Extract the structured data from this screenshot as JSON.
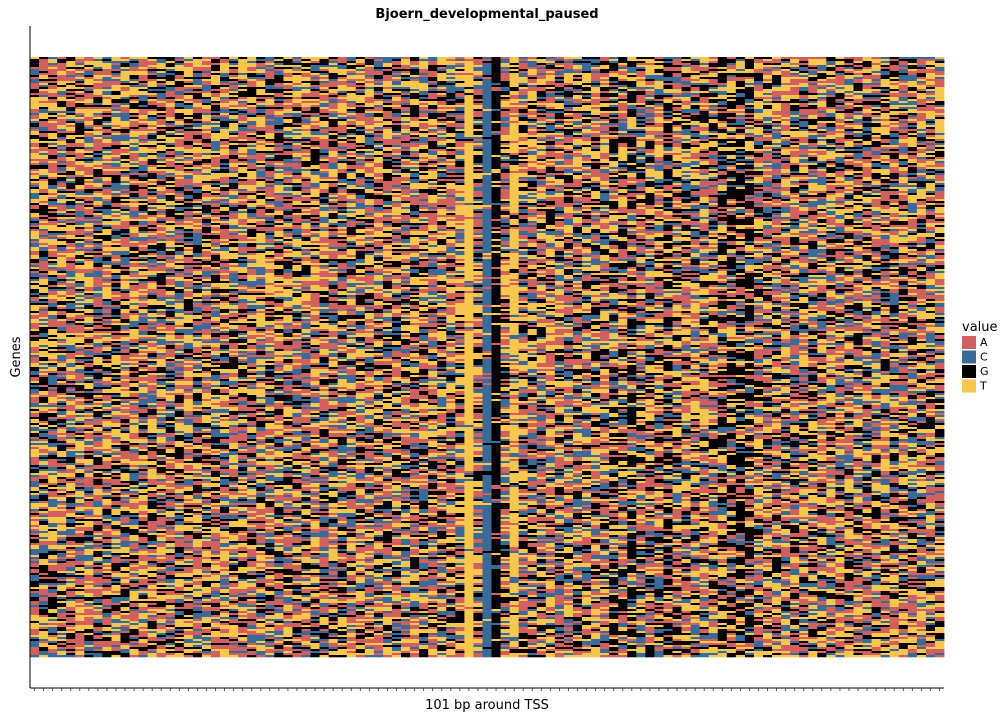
{
  "chart_data": {
    "type": "heatmap",
    "title": "Bjoern_developmental_paused",
    "xlabel": "101 bp around TSS",
    "ylabel": "Genes",
    "n_positions": 101,
    "n_genes": 300,
    "legend": {
      "title": "value",
      "placement": "right",
      "entries": [
        {
          "label": "A",
          "color": "#d1605e"
        },
        {
          "label": "C",
          "color": "#3a6a98"
        },
        {
          "label": "G",
          "color": "#000000"
        },
        {
          "label": "T",
          "color": "#f9c64e"
        }
      ]
    },
    "column_composition_note": "per-position base probabilities A,C,G,T estimated from the image",
    "conserved_columns": [
      {
        "position": 48,
        "probs": [
          0.02,
          0.02,
          0.02,
          0.94
        ]
      },
      {
        "position": 50,
        "probs": [
          0.04,
          0.88,
          0.04,
          0.04
        ]
      },
      {
        "position": 51,
        "probs": [
          0.05,
          0.05,
          0.85,
          0.05
        ]
      },
      {
        "position": 53,
        "probs": [
          0.12,
          0.08,
          0.1,
          0.7
        ]
      }
    ],
    "g_rich_columns": [
      64,
      66,
      70,
      76,
      77,
      78,
      79
    ],
    "background_probs": [
      0.28,
      0.18,
      0.24,
      0.3
    ]
  }
}
